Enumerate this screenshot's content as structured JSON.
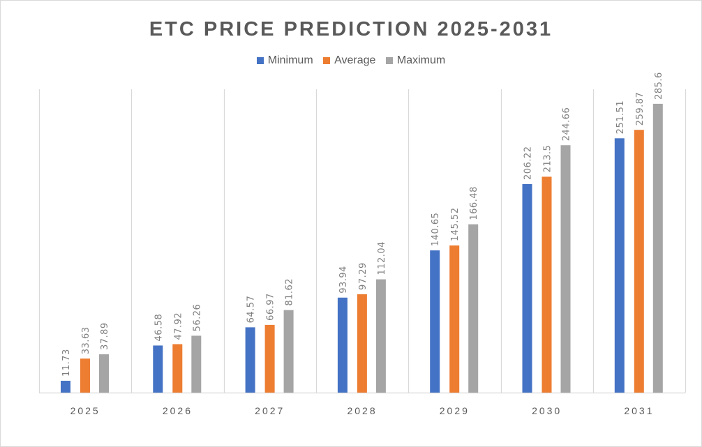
{
  "chart_data": {
    "type": "bar",
    "title": "ETC PRICE PREDICTION 2025-2031",
    "categories": [
      "2025",
      "2026",
      "2027",
      "2028",
      "2029",
      "2030",
      "2031"
    ],
    "series": [
      {
        "name": "Minimum",
        "color": "#4472c4",
        "values": [
          11.73,
          46.58,
          64.57,
          93.94,
          140.65,
          206.22,
          251.51
        ]
      },
      {
        "name": "Average",
        "color": "#ed7d31",
        "values": [
          33.63,
          47.92,
          66.97,
          97.29,
          145.52,
          213.5,
          259.87
        ]
      },
      {
        "name": "Maximum",
        "color": "#a5a5a5",
        "values": [
          37.89,
          56.26,
          81.62,
          112.04,
          166.48,
          244.66,
          285.6
        ]
      }
    ],
    "ylim": [
      0,
      300
    ],
    "legend": "top",
    "grid": "vertical category separators",
    "data_labels": true
  }
}
